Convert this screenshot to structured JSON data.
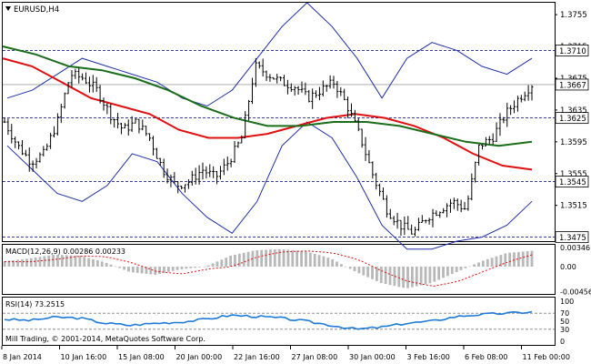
{
  "window": {
    "title": "EURUSD,H4",
    "icon": "chart-triangle-icon"
  },
  "price_panel": {
    "ticks": [
      "1.3755",
      "1.3715",
      "1.3675",
      "1.3635",
      "1.3595",
      "1.3555",
      "1.3515"
    ],
    "levels": [
      {
        "label": "1.3710",
        "value": 1.371
      },
      {
        "label": "1.3625",
        "value": 1.3625
      },
      {
        "label": "1.3545",
        "value": 1.3545
      },
      {
        "label": "1.3475",
        "value": 1.3475
      }
    ],
    "current_price": {
      "label": "1.3667",
      "value": 1.3667
    },
    "y_range": [
      1.347,
      1.377
    ]
  },
  "macd_panel": {
    "label": "MACD(12,26,9) 0.00286 0.00233",
    "ticks": [
      "0.00346",
      "0.00",
      "-0.00456"
    ],
    "y_range": [
      -0.005,
      0.004
    ]
  },
  "rsi_panel": {
    "label": "RSI(14) 73.2515",
    "ticks": [
      "100",
      "70",
      "50",
      "30",
      "0"
    ],
    "levels": [
      70,
      30
    ],
    "y_range": [
      0,
      100
    ]
  },
  "time_axis": {
    "labels": [
      "8 Jan 2014",
      "10 Jan 16:00",
      "15 Jan 08:00",
      "20 Jan 00:00",
      "22 Jan 16:00",
      "27 Jan 08:00",
      "30 Jan 00:00",
      "3 Feb 16:00",
      "6 Feb 08:00",
      "11 Feb 00:00"
    ]
  },
  "copyright": "Mill Trading, © 2001-2014, MetaQuotes Software Corp.",
  "colors": {
    "candles": "#000000",
    "bollinger": "#1f2fa8",
    "ma_red": "#e01010",
    "ma_green": "#1a6e1a",
    "level_line": "#000080",
    "rsi_line": "#1e7ad7",
    "macd_hist": "#b8b8b8",
    "macd_signal": "#e01010"
  },
  "chart_data": {
    "type": "candlestick",
    "symbol": "EURUSD",
    "timeframe": "H4",
    "close_path": [
      1.362,
      1.359,
      1.357,
      1.358,
      1.362,
      1.368,
      1.3675,
      1.366,
      1.363,
      1.361,
      1.362,
      1.36,
      1.356,
      1.354,
      1.3545,
      1.356,
      1.355,
      1.357,
      1.36,
      1.369,
      1.368,
      1.367,
      1.3665,
      1.365,
      1.366,
      1.367,
      1.364,
      1.36,
      1.355,
      1.351,
      1.349,
      1.348,
      1.35,
      1.351,
      1.352,
      1.351,
      1.359,
      1.36,
      1.363,
      1.365,
      1.3667
    ],
    "bollinger_upper": [
      1.365,
      1.366,
      1.368,
      1.37,
      1.369,
      1.368,
      1.367,
      1.365,
      1.364,
      1.366,
      1.37,
      1.374,
      1.377,
      1.374,
      1.37,
      1.365,
      1.37,
      1.372,
      1.371,
      1.369,
      1.368,
      1.37
    ],
    "bollinger_lower": [
      1.359,
      1.356,
      1.353,
      1.352,
      1.354,
      1.358,
      1.357,
      1.353,
      1.35,
      1.348,
      1.352,
      1.359,
      1.362,
      1.36,
      1.355,
      1.349,
      1.346,
      1.346,
      1.347,
      1.3475,
      1.349,
      1.352
    ],
    "ma_red": [
      1.37,
      1.369,
      1.367,
      1.365,
      1.364,
      1.363,
      1.361,
      1.36,
      1.36,
      1.3605,
      1.3615,
      1.3625,
      1.363,
      1.3625,
      1.3615,
      1.36,
      1.358,
      1.3565,
      1.356
    ],
    "ma_green": [
      1.3715,
      1.3705,
      1.369,
      1.3685,
      1.3675,
      1.366,
      1.364,
      1.3625,
      1.3615,
      1.3615,
      1.362,
      1.362,
      1.3615,
      1.3605,
      1.3595,
      1.359,
      1.3595
    ],
    "macd": [
      0.001,
      0.0015,
      0.0022,
      0.002,
      0.0008,
      -0.001,
      -0.0015,
      -0.0005,
      0.0,
      0.002,
      0.003,
      0.0032,
      0.0028,
      0.0015,
      -0.001,
      -0.003,
      -0.004,
      -0.003,
      -0.001,
      0.001,
      0.0025,
      0.0029
    ],
    "rsi": [
      55,
      52,
      60,
      58,
      45,
      40,
      45,
      48,
      55,
      65,
      62,
      58,
      50,
      40,
      30,
      35,
      45,
      50,
      62,
      67,
      70,
      73
    ]
  }
}
